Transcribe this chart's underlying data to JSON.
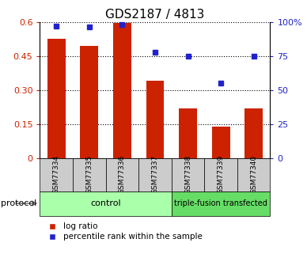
{
  "title": "GDS2187 / 4813",
  "samples": [
    "GSM77334",
    "GSM77335",
    "GSM77336",
    "GSM77337",
    "GSM77338",
    "GSM77339",
    "GSM77340"
  ],
  "log_ratio": [
    0.525,
    0.495,
    0.595,
    0.34,
    0.22,
    0.138,
    0.22
  ],
  "percentile_rank": [
    97,
    96,
    98,
    78,
    75,
    55,
    75
  ],
  "bar_color": "#cc2200",
  "dot_color": "#2222cc",
  "ylim_left": [
    0,
    0.6
  ],
  "ylim_right": [
    0,
    100
  ],
  "yticks_left": [
    0,
    0.15,
    0.3,
    0.45,
    0.6
  ],
  "ytick_labels_left": [
    "0",
    "0.15",
    "0.30",
    "0.45",
    "0.6"
  ],
  "yticks_right": [
    0,
    25,
    50,
    75,
    100
  ],
  "ytick_labels_right": [
    "0",
    "25",
    "50",
    "75",
    "100%"
  ],
  "groups": [
    {
      "label": "control",
      "start": 0,
      "end": 4,
      "color": "#aaffaa"
    },
    {
      "label": "triple-fusion transfected",
      "start": 4,
      "end": 7,
      "color": "#66dd66"
    }
  ],
  "protocol_label": "protocol",
  "legend_items": [
    {
      "color": "#cc2200",
      "label": "log ratio"
    },
    {
      "color": "#2222cc",
      "label": "percentile rank within the sample"
    }
  ],
  "bar_width": 0.55,
  "background_color": "#ffffff",
  "plot_bg_color": "#ffffff",
  "tick_bg_color": "#cccccc",
  "grid_color": "#000000",
  "title_fontsize": 11,
  "axis_label_color_left": "#cc2200",
  "axis_label_color_right": "#2222cc"
}
